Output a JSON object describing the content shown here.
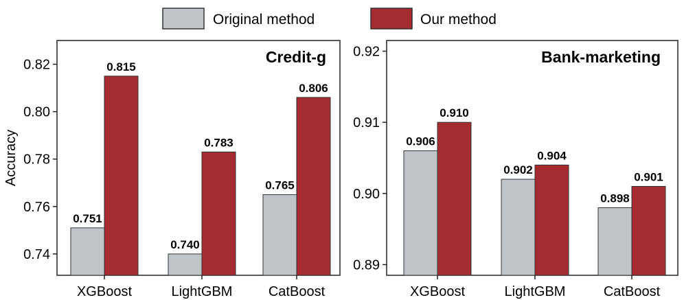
{
  "legend": {
    "items": [
      {
        "label": "Original method",
        "color": "#bfc4c7"
      },
      {
        "label": "Our method",
        "color": "#a42b30"
      }
    ]
  },
  "chart_data": [
    {
      "type": "bar",
      "title": "Credit-g",
      "ylabel": "Accuracy",
      "xlabel": "",
      "categories": [
        "XGBoost",
        "LightGBM",
        "CatBoost"
      ],
      "series": [
        {
          "name": "Original method",
          "color": "#bfc4c7",
          "values": [
            0.751,
            0.74,
            0.765
          ],
          "labels": [
            "0.751",
            "0.740",
            "0.765"
          ]
        },
        {
          "name": "Our method",
          "color": "#a42b30",
          "values": [
            0.815,
            0.783,
            0.806
          ],
          "labels": [
            "0.815",
            "0.783",
            "0.806"
          ]
        }
      ],
      "ylim": [
        0.731,
        0.83
      ],
      "yticks": [
        0.74,
        0.76,
        0.78,
        0.8,
        0.82
      ],
      "ytick_labels": [
        "0.74",
        "0.76",
        "0.78",
        "0.80",
        "0.82"
      ],
      "grid": false,
      "legend_position": "top-center"
    },
    {
      "type": "bar",
      "title": "Bank-marketing",
      "ylabel": "",
      "xlabel": "",
      "categories": [
        "XGBoost",
        "LightGBM",
        "CatBoost"
      ],
      "series": [
        {
          "name": "Original method",
          "color": "#bfc4c7",
          "values": [
            0.906,
            0.902,
            0.898
          ],
          "labels": [
            "0.906",
            "0.902",
            "0.898"
          ]
        },
        {
          "name": "Our method",
          "color": "#a42b30",
          "values": [
            0.91,
            0.904,
            0.901
          ],
          "labels": [
            "0.910",
            "0.904",
            "0.901"
          ]
        }
      ],
      "ylim": [
        0.8885,
        0.9215
      ],
      "yticks": [
        0.89,
        0.9,
        0.91,
        0.92
      ],
      "ytick_labels": [
        "0.89",
        "0.90",
        "0.91",
        "0.92"
      ],
      "grid": false,
      "legend_position": "top-center"
    }
  ]
}
